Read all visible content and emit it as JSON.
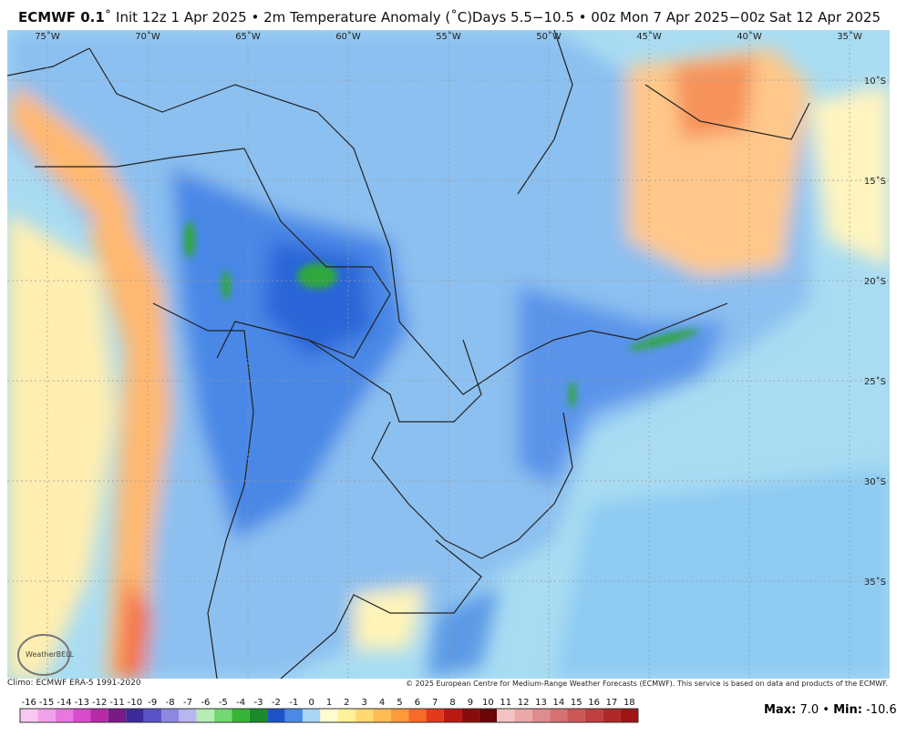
{
  "header": {
    "model": "ECMWF 0.1",
    "title_rest": "˚ Init 12z 1 Apr 2025 • 2m Temperature Anomaly (˚C)",
    "valid": "Days 5.5−10.5 • 00z Mon 7 Apr 2025−00z Sat 12 Apr 2025"
  },
  "map": {
    "lon_labels": [
      "75˚W",
      "70˚W",
      "65˚W",
      "60˚W",
      "55˚W",
      "50˚W",
      "45˚W",
      "40˚W",
      "35˚W"
    ],
    "lat_labels": [
      "10˚S",
      "15˚S",
      "20˚S",
      "25˚S",
      "30˚S",
      "35˚S"
    ],
    "logo": "WeatherBELL"
  },
  "footer": {
    "climo": "Climo: ECMWF ERA-5 1991-2020",
    "copyright": "© 2025 European Centre for Medium-Range Weather Forecasts (ECMWF). This service is based on data and products of the ECMWF."
  },
  "colorbar": {
    "labels": [
      "-16",
      "-15",
      "-14",
      "-13",
      "-12",
      "-11",
      "-10",
      "-9",
      "-8",
      "-7",
      "-6",
      "-5",
      "-4",
      "-3",
      "-2",
      "-1",
      "0",
      "1",
      "2",
      "3",
      "4",
      "5",
      "6",
      "7",
      "8",
      "9",
      "10",
      "11",
      "12",
      "13",
      "14",
      "15",
      "16",
      "17",
      "18"
    ],
    "colors": [
      "#f8c8f2",
      "#f2a2ea",
      "#e878de",
      "#d84ccc",
      "#b82aa8",
      "#7a1a86",
      "#3c2a9a",
      "#5a52c8",
      "#8c88e0",
      "#b8b6ee",
      "#b4ecb4",
      "#72d872",
      "#36b436",
      "#1a8a2a",
      "#1c54c8",
      "#4a8ae6",
      "#a8d4f6",
      "#fffad0",
      "#fff09a",
      "#ffd870",
      "#ffbc52",
      "#ff9a3a",
      "#f86a28",
      "#e23a1c",
      "#b81a10",
      "#8a0c0a",
      "#6a0606",
      "#f4c4c4",
      "#eaa8a8",
      "#e08c8c",
      "#d67272",
      "#cc5858",
      "#c04040",
      "#b02828",
      "#a01414"
    ]
  },
  "stats": {
    "items": [
      "Max:",
      "7.0 •",
      "Min:",
      "-10.6"
    ]
  }
}
